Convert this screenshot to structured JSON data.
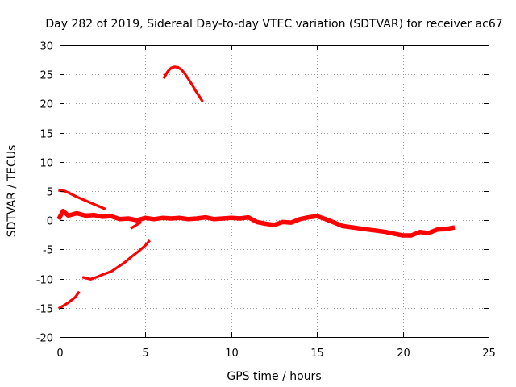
{
  "chart_data": {
    "type": "line",
    "title": "Day 282 of 2019, Sidereal Day-to-day VTEC variation (SDTVAR) for receiver ac67",
    "xlabel": "GPS time / hours",
    "ylabel": "SDTVAR / TECUs",
    "xlim": [
      0,
      25
    ],
    "ylim": [
      -20,
      30
    ],
    "x_ticks": [
      0,
      5,
      10,
      15,
      20,
      25
    ],
    "y_ticks": [
      -20,
      -15,
      -10,
      -5,
      0,
      5,
      10,
      15,
      20,
      25,
      30
    ],
    "x_tick_labels": [
      "0",
      "5",
      "10",
      "15",
      "20",
      "25"
    ],
    "y_tick_labels": [
      "-20",
      "-15",
      "-10",
      "-5",
      "0",
      "5",
      "10",
      "15",
      "20",
      "25",
      "30"
    ],
    "grid": true,
    "series_color": "#ff0000",
    "series": [
      {
        "name": "high-arc",
        "style": "smooth",
        "x": [
          6.1,
          6.3,
          6.5,
          6.7,
          6.9,
          7.1,
          7.3,
          7.5,
          7.7,
          7.9,
          8.1,
          8.3
        ],
        "y": [
          24.5,
          25.5,
          26.1,
          26.3,
          26.2,
          25.8,
          25.1,
          24.2,
          23.3,
          22.3,
          21.4,
          20.5
        ]
      },
      {
        "name": "upper-left",
        "style": "smooth",
        "x": [
          0.0,
          0.3,
          0.6,
          1.0,
          1.4,
          1.8,
          2.2,
          2.6
        ],
        "y": [
          5.1,
          5.0,
          4.6,
          4.0,
          3.5,
          3.0,
          2.5,
          2.0
        ]
      },
      {
        "name": "main-trend",
        "style": "noisy",
        "x": [
          0.0,
          0.2,
          0.5,
          1.0,
          1.5,
          2.0,
          2.5,
          3.0,
          3.5,
          4.0,
          4.5,
          5.0,
          5.5,
          6.0,
          6.5,
          7.0,
          7.5,
          8.0,
          8.5,
          9.0,
          9.5,
          10.0,
          10.5,
          11.0,
          11.5,
          12.0,
          12.5,
          13.0,
          13.5,
          14.0,
          14.5,
          15.0,
          15.5,
          16.0,
          16.5,
          17.0,
          17.5,
          18.0,
          18.5,
          19.0,
          19.5,
          20.0,
          20.5,
          21.0,
          21.5,
          22.0,
          22.5,
          22.9
        ],
        "y": [
          0.5,
          1.6,
          0.8,
          1.2,
          0.8,
          0.9,
          0.6,
          0.7,
          0.2,
          0.3,
          0.0,
          0.4,
          0.2,
          0.4,
          0.3,
          0.4,
          0.2,
          0.3,
          0.5,
          0.2,
          0.3,
          0.4,
          0.3,
          0.5,
          -0.3,
          -0.6,
          -0.8,
          -0.3,
          -0.4,
          0.2,
          0.5,
          0.7,
          0.2,
          -0.4,
          -1.0,
          -1.2,
          -1.4,
          -1.6,
          -1.8,
          -2.0,
          -2.3,
          -2.6,
          -2.6,
          -2.0,
          -2.2,
          -1.6,
          -1.5,
          -1.3
        ]
      },
      {
        "name": "lower-left-a",
        "style": "smooth",
        "x": [
          0.0,
          0.3,
          0.6,
          0.9,
          1.1
        ],
        "y": [
          -15.0,
          -14.5,
          -13.9,
          -13.2,
          -12.4
        ]
      },
      {
        "name": "lower-left-b",
        "style": "smooth",
        "x": [
          1.4,
          1.8,
          2.2,
          2.6,
          3.0,
          3.4,
          3.8,
          4.2,
          4.6,
          5.0,
          5.2
        ],
        "y": [
          -9.8,
          -10.1,
          -9.7,
          -9.2,
          -8.8,
          -8.0,
          -7.2,
          -6.2,
          -5.3,
          -4.3,
          -3.6
        ]
      },
      {
        "name": "small-segment",
        "style": "smooth",
        "x": [
          4.2,
          4.7
        ],
        "y": [
          -1.3,
          -0.4
        ]
      }
    ]
  }
}
